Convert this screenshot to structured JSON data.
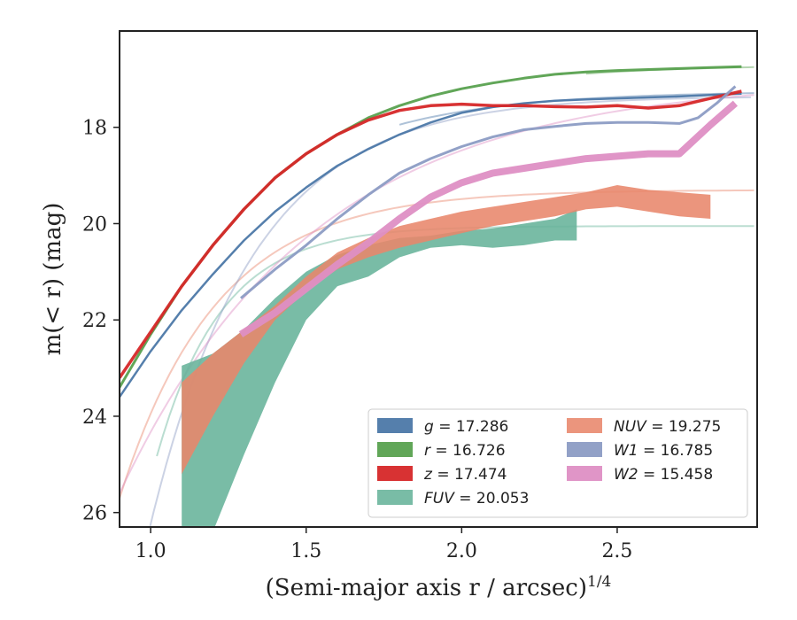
{
  "chart_data": {
    "type": "line",
    "xlabel": "(Semi-major axis r / arcsec)",
    "xlabel_exponent": "1/4",
    "ylabel": "m(< r) (mag)",
    "xlim": [
      0.9,
      2.95
    ],
    "ylim": [
      26.3,
      16.0
    ],
    "y_inverted": true,
    "grid": false,
    "legend_placement": "lower-right",
    "x_ticks": [
      "1.0",
      "1.5",
      "2.0",
      "2.5"
    ],
    "x_tick_values": [
      1.0,
      1.5,
      2.0,
      2.5
    ],
    "y_ticks": [
      "18",
      "20",
      "22",
      "24",
      "26"
    ],
    "y_tick_values": [
      18,
      20,
      22,
      24,
      26
    ],
    "series": [
      {
        "name": "g",
        "legend_label": "g = 17.286",
        "legend_var": "g",
        "legend_value": "= 17.286",
        "color": "#4c78a8",
        "x": [
          0.9,
          1.0,
          1.1,
          1.2,
          1.3,
          1.4,
          1.5,
          1.6,
          1.7,
          1.8,
          1.9,
          2.0,
          2.1,
          2.2,
          2.3,
          2.4,
          2.5,
          2.6,
          2.7,
          2.8,
          2.9
        ],
        "y": [
          23.6,
          22.65,
          21.8,
          21.05,
          20.35,
          19.75,
          19.25,
          18.8,
          18.45,
          18.15,
          17.9,
          17.7,
          17.58,
          17.5,
          17.45,
          17.42,
          17.4,
          17.38,
          17.36,
          17.33,
          17.3
        ],
        "width": 2.5
      },
      {
        "name": "r",
        "legend_label": "r = 16.726",
        "legend_var": "r",
        "legend_value": "= 16.726",
        "color": "#59a14f",
        "x": [
          0.9,
          1.0,
          1.1,
          1.2,
          1.3,
          1.4,
          1.5,
          1.6,
          1.7,
          1.8,
          1.9,
          2.0,
          2.1,
          2.2,
          2.3,
          2.4,
          2.5,
          2.6,
          2.7,
          2.8,
          2.9
        ],
        "y": [
          23.4,
          22.3,
          21.3,
          20.45,
          19.7,
          19.05,
          18.55,
          18.15,
          17.8,
          17.55,
          17.35,
          17.2,
          17.08,
          16.98,
          16.9,
          16.85,
          16.82,
          16.8,
          16.78,
          16.76,
          16.74
        ],
        "width": 3
      },
      {
        "name": "z",
        "legend_label": "z = 17.474",
        "legend_var": "z",
        "legend_value": "= 17.474",
        "color": "#d62728",
        "x": [
          0.9,
          1.0,
          1.1,
          1.2,
          1.3,
          1.4,
          1.5,
          1.6,
          1.7,
          1.8,
          1.9,
          2.0,
          2.1,
          2.2,
          2.3,
          2.4,
          2.5,
          2.6,
          2.7,
          2.8,
          2.9
        ],
        "y": [
          23.2,
          22.25,
          21.3,
          20.45,
          19.7,
          19.05,
          18.55,
          18.15,
          17.85,
          17.65,
          17.55,
          17.52,
          17.55,
          17.55,
          17.57,
          17.58,
          17.55,
          17.6,
          17.55,
          17.4,
          17.25
        ],
        "width": 3.5
      },
      {
        "name": "FUV",
        "legend_label": "FUV = 20.053",
        "legend_var": "FUV",
        "legend_value": "= 20.053",
        "color": "#66b39a",
        "band": true,
        "x": [
          1.1,
          1.2,
          1.3,
          1.4,
          1.5,
          1.6,
          1.7,
          1.8,
          1.9,
          2.0,
          2.1,
          2.2,
          2.3,
          2.37
        ],
        "y_low": [
          22.95,
          22.7,
          22.2,
          21.55,
          21.0,
          20.65,
          20.45,
          20.3,
          20.25,
          20.15,
          20.1,
          20.0,
          19.9,
          19.7
        ],
        "y_high": [
          26.4,
          26.4,
          24.8,
          23.3,
          22.0,
          21.3,
          21.1,
          20.7,
          20.5,
          20.45,
          20.5,
          20.45,
          20.35,
          20.35
        ]
      },
      {
        "name": "NUV",
        "legend_label": "NUV = 19.275",
        "legend_var": "NUV",
        "legend_value": "= 19.275",
        "color": "#e8866b",
        "band": true,
        "x": [
          1.1,
          1.2,
          1.3,
          1.4,
          1.5,
          1.6,
          1.7,
          1.8,
          1.9,
          2.0,
          2.1,
          2.2,
          2.3,
          2.4,
          2.5,
          2.6,
          2.7,
          2.8
        ],
        "y_low": [
          23.3,
          22.7,
          22.2,
          21.7,
          21.1,
          20.6,
          20.3,
          20.05,
          19.9,
          19.75,
          19.65,
          19.55,
          19.45,
          19.35,
          19.2,
          19.3,
          19.35,
          19.4
        ],
        "y_high": [
          25.2,
          24.0,
          22.9,
          22.0,
          21.4,
          20.95,
          20.7,
          20.5,
          20.35,
          20.2,
          20.05,
          19.95,
          19.85,
          19.7,
          19.65,
          19.75,
          19.85,
          19.9
        ]
      },
      {
        "name": "W1",
        "legend_label": "W1 = 16.785",
        "legend_var": "W1",
        "legend_value": "= 16.785",
        "color": "#8c9cc4",
        "x": [
          1.29,
          1.4,
          1.5,
          1.6,
          1.7,
          1.8,
          1.9,
          2.0,
          2.1,
          2.2,
          2.3,
          2.4,
          2.5,
          2.6,
          2.7,
          2.76,
          2.82,
          2.88
        ],
        "y": [
          21.55,
          20.95,
          20.45,
          19.9,
          19.4,
          18.95,
          18.65,
          18.4,
          18.2,
          18.05,
          17.98,
          17.92,
          17.9,
          17.9,
          17.92,
          17.8,
          17.5,
          17.15
        ],
        "width": 3
      },
      {
        "name": "W2",
        "legend_label": "W2 = 15.458",
        "legend_var": "W2",
        "legend_value": "= 15.458",
        "color": "#de8fc4",
        "x": [
          1.29,
          1.4,
          1.5,
          1.6,
          1.7,
          1.8,
          1.9,
          2.0,
          2.1,
          2.2,
          2.3,
          2.4,
          2.5,
          2.6,
          2.7,
          2.8,
          2.88
        ],
        "y": [
          22.3,
          21.85,
          21.35,
          20.85,
          20.4,
          19.9,
          19.45,
          19.15,
          18.95,
          18.85,
          18.75,
          18.65,
          18.6,
          18.55,
          18.55,
          17.95,
          17.5
        ],
        "width": 8
      }
    ]
  }
}
